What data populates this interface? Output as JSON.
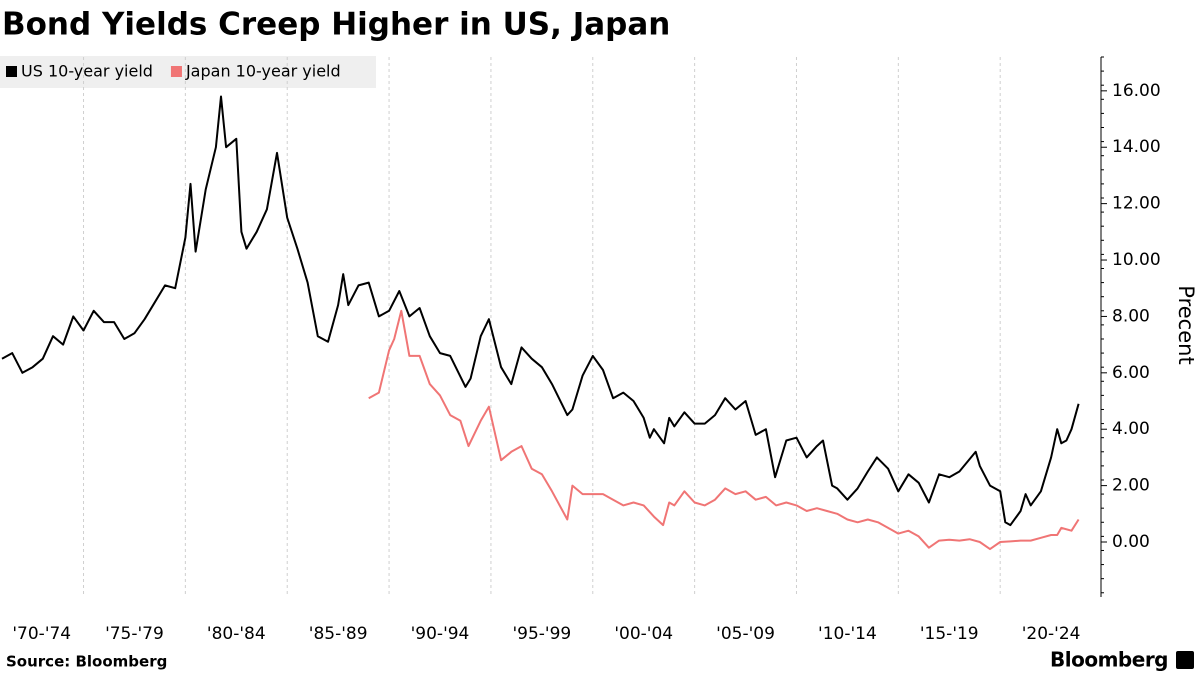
{
  "chart_data": {
    "type": "line",
    "title": "Bond Yields Creep Higher in US, Japan",
    "ylabel": "Precent",
    "source": "Source: Bloomberg",
    "brand": "Bloomberg",
    "grid": "x",
    "legend": "top-left",
    "xlim": [
      1970.9,
      2024.9
    ],
    "ylim": [
      -1.95,
      17.2
    ],
    "xticks": [
      {
        "value": 1970,
        "label": "'70-'74"
      },
      {
        "value": 1975,
        "label": "'75-'79"
      },
      {
        "value": 1980,
        "label": "'80-'84"
      },
      {
        "value": 1985,
        "label": "'85-'89"
      },
      {
        "value": 1990,
        "label": "'90-'94"
      },
      {
        "value": 1995,
        "label": "'95-'99"
      },
      {
        "value": 2000,
        "label": "'00-'04"
      },
      {
        "value": 2005,
        "label": "'05-'09"
      },
      {
        "value": 2010,
        "label": "'10-'14"
      },
      {
        "value": 2015,
        "label": "'15-'19"
      },
      {
        "value": 2020,
        "label": "'20-'24"
      }
    ],
    "yticks": [
      {
        "value": 0,
        "label": "0.00"
      },
      {
        "value": 2,
        "label": "2.00"
      },
      {
        "value": 4,
        "label": "4.00"
      },
      {
        "value": 6,
        "label": "6.00"
      },
      {
        "value": 8,
        "label": "8.00"
      },
      {
        "value": 10,
        "label": "10.00"
      },
      {
        "value": 12,
        "label": "12.00"
      },
      {
        "value": 14,
        "label": "14.00"
      },
      {
        "value": 16,
        "label": "16.00"
      }
    ],
    "series": [
      {
        "name": "US 10-year yield",
        "color": "#000000",
        "x": [
          1971.0,
          1971.5,
          1972.0,
          1972.5,
          1973.0,
          1973.5,
          1974.0,
          1974.5,
          1975.0,
          1975.5,
          1976.0,
          1976.5,
          1977.0,
          1977.5,
          1978.0,
          1978.5,
          1979.0,
          1979.5,
          1980.0,
          1980.25,
          1980.5,
          1981.0,
          1981.5,
          1981.75,
          1982.0,
          1982.5,
          1982.75,
          1983.0,
          1983.5,
          1984.0,
          1984.5,
          1985.0,
          1985.5,
          1986.0,
          1986.5,
          1987.0,
          1987.5,
          1987.75,
          1988.0,
          1988.5,
          1989.0,
          1989.5,
          1990.0,
          1990.5,
          1991.0,
          1991.5,
          1992.0,
          1992.5,
          1993.0,
          1993.75,
          1994.0,
          1994.5,
          1994.9,
          1995.5,
          1996.0,
          1996.5,
          1997.0,
          1997.5,
          1998.0,
          1998.75,
          1999.0,
          1999.5,
          2000.0,
          2000.5,
          2001.0,
          2001.5,
          2002.0,
          2002.5,
          2002.8,
          2003.0,
          2003.5,
          2003.75,
          2004.0,
          2004.5,
          2005.0,
          2005.5,
          2006.0,
          2006.5,
          2007.0,
          2007.5,
          2008.0,
          2008.5,
          2008.95,
          2009.5,
          2010.0,
          2010.5,
          2011.0,
          2011.3,
          2011.75,
          2012.0,
          2012.5,
          2013.0,
          2013.5,
          2013.95,
          2014.5,
          2015.0,
          2015.5,
          2016.0,
          2016.5,
          2017.0,
          2017.5,
          2018.0,
          2018.8,
          2019.0,
          2019.5,
          2020.0,
          2020.25,
          2020.5,
          2021.0,
          2021.25,
          2021.5,
          2022.0,
          2022.5,
          2022.8,
          2023.0,
          2023.25,
          2023.5,
          2023.85
        ],
        "values": [
          6.5,
          6.7,
          6.0,
          6.2,
          6.5,
          7.3,
          7.0,
          8.0,
          7.5,
          8.2,
          7.8,
          7.8,
          7.2,
          7.4,
          7.9,
          8.5,
          9.1,
          9.0,
          10.8,
          12.7,
          10.3,
          12.5,
          14.0,
          15.8,
          14.0,
          14.3,
          11.0,
          10.4,
          11.0,
          11.8,
          13.8,
          11.5,
          10.4,
          9.2,
          7.3,
          7.1,
          8.4,
          9.5,
          8.4,
          9.1,
          9.2,
          8.0,
          8.2,
          8.9,
          8.0,
          8.3,
          7.3,
          6.7,
          6.6,
          5.5,
          5.8,
          7.3,
          7.9,
          6.2,
          5.6,
          6.9,
          6.5,
          6.2,
          5.6,
          4.5,
          4.7,
          5.9,
          6.6,
          6.1,
          5.1,
          5.3,
          5.0,
          4.4,
          3.7,
          4.0,
          3.5,
          4.4,
          4.1,
          4.6,
          4.2,
          4.2,
          4.5,
          5.1,
          4.7,
          5.0,
          3.8,
          4.0,
          2.3,
          3.6,
          3.7,
          3.0,
          3.4,
          3.6,
          2.0,
          1.9,
          1.5,
          1.9,
          2.5,
          3.0,
          2.6,
          1.8,
          2.4,
          2.1,
          1.4,
          2.4,
          2.3,
          2.5,
          3.2,
          2.7,
          2.0,
          1.8,
          0.7,
          0.6,
          1.1,
          1.7,
          1.3,
          1.8,
          3.0,
          4.0,
          3.5,
          3.6,
          4.0,
          4.9
        ]
      },
      {
        "name": "Japan 10-year yield",
        "color": "#f07575",
        "x": [
          1989.0,
          1989.5,
          1990.0,
          1990.25,
          1990.6,
          1991.0,
          1991.5,
          1992.0,
          1992.5,
          1993.0,
          1993.5,
          1993.9,
          1994.5,
          1994.9,
          1995.5,
          1996.0,
          1996.5,
          1997.0,
          1997.5,
          1998.0,
          1998.75,
          1999.0,
          1999.5,
          2000.0,
          2000.5,
          2001.0,
          2001.5,
          2002.0,
          2002.5,
          2003.0,
          2003.45,
          2003.75,
          2004.0,
          2004.5,
          2005.0,
          2005.5,
          2006.0,
          2006.5,
          2007.0,
          2007.5,
          2008.0,
          2008.5,
          2009.0,
          2009.5,
          2010.0,
          2010.5,
          2011.0,
          2011.5,
          2012.0,
          2012.5,
          2013.0,
          2013.5,
          2014.0,
          2014.5,
          2015.0,
          2015.5,
          2016.0,
          2016.5,
          2017.0,
          2017.5,
          2018.0,
          2018.5,
          2019.0,
          2019.5,
          2020.0,
          2020.5,
          2021.0,
          2021.5,
          2022.0,
          2022.5,
          2022.8,
          2023.0,
          2023.5,
          2023.85
        ],
        "values": [
          5.1,
          5.3,
          6.8,
          7.2,
          8.2,
          6.6,
          6.6,
          5.6,
          5.2,
          4.5,
          4.3,
          3.4,
          4.3,
          4.8,
          2.9,
          3.2,
          3.4,
          2.6,
          2.4,
          1.8,
          0.8,
          2.0,
          1.7,
          1.7,
          1.7,
          1.5,
          1.3,
          1.4,
          1.3,
          0.9,
          0.6,
          1.4,
          1.3,
          1.8,
          1.4,
          1.3,
          1.5,
          1.9,
          1.7,
          1.8,
          1.5,
          1.6,
          1.3,
          1.4,
          1.3,
          1.1,
          1.2,
          1.1,
          1.0,
          0.8,
          0.7,
          0.8,
          0.7,
          0.5,
          0.3,
          0.4,
          0.2,
          -0.2,
          0.05,
          0.08,
          0.05,
          0.1,
          0.0,
          -0.25,
          0.0,
          0.02,
          0.05,
          0.05,
          0.15,
          0.25,
          0.25,
          0.5,
          0.4,
          0.8
        ]
      }
    ]
  }
}
